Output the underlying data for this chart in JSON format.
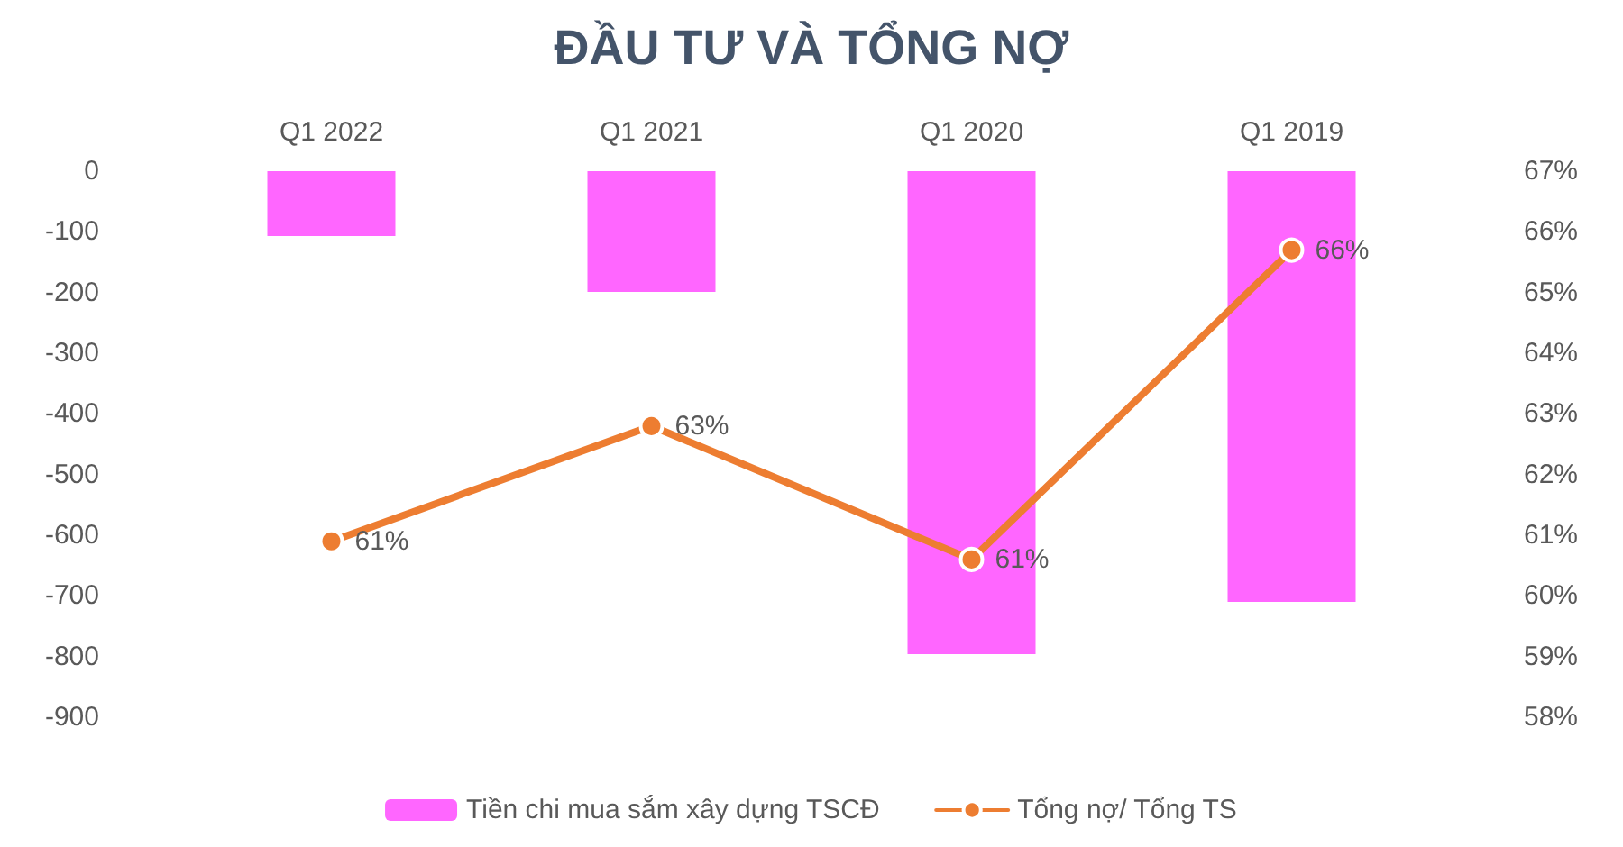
{
  "chart_data": {
    "type": "bar",
    "title": "ĐẦU TƯ VÀ TỔNG NỢ",
    "categories": [
      "Q1 2022",
      "Q1 2021",
      "Q1 2020",
      "Q1 2019"
    ],
    "series": [
      {
        "name": "Tiền chi mua sắm xây dựng TSCĐ",
        "color": "#ff66ff",
        "values": [
          -107,
          -199,
          -796,
          -710
        ]
      },
      {
        "name": "Tổng nợ/ Tổng TS",
        "type": "line",
        "axis": "y2",
        "color": "#ed7d31",
        "values": [
          60.9,
          62.8,
          60.6,
          65.7
        ],
        "value_labels": [
          "61%",
          "63%",
          "61%",
          "66%"
        ],
        "marker": "circle",
        "line_style": "solid"
      }
    ],
    "ylim": [
      -900,
      0
    ],
    "yticks": [
      -900,
      -800,
      -700,
      -600,
      -500,
      -400,
      -300,
      -200,
      -100,
      0
    ],
    "y2lim": [
      58,
      67
    ],
    "y2ticks": [
      {
        "value": 58,
        "label": "58%"
      },
      {
        "value": 59,
        "label": "59%"
      },
      {
        "value": 60,
        "label": "60%"
      },
      {
        "value": 61,
        "label": "61%"
      },
      {
        "value": 62,
        "label": "62%"
      },
      {
        "value": 63,
        "label": "63%"
      },
      {
        "value": 64,
        "label": "64%"
      },
      {
        "value": 65,
        "label": "65%"
      },
      {
        "value": 66,
        "label": "66%"
      },
      {
        "value": 67,
        "label": "67%"
      }
    ],
    "grid": false,
    "legend": "bottom"
  }
}
